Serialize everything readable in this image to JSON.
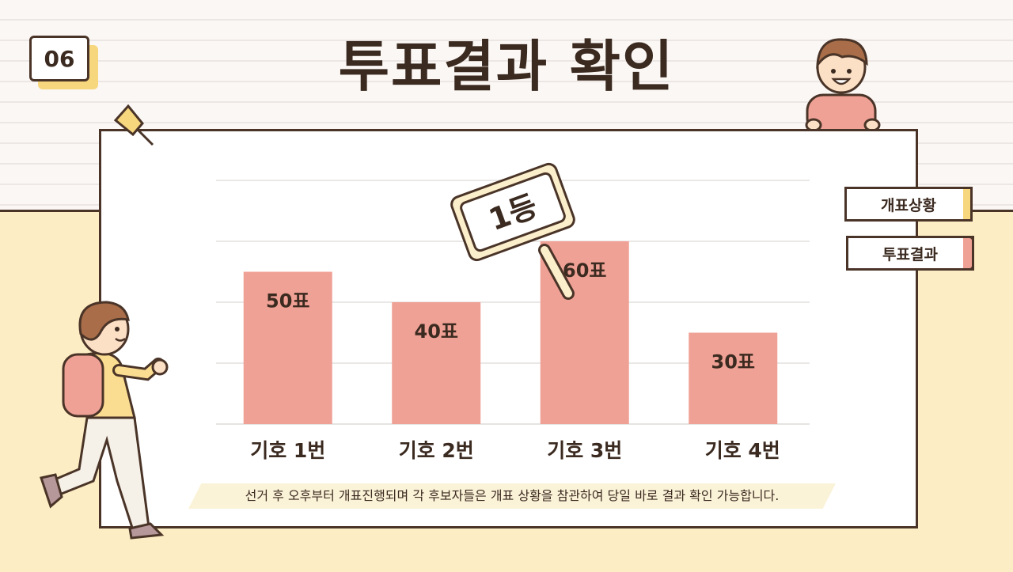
{
  "badge": {
    "number": "06"
  },
  "page": {
    "title": "투표결과 확인"
  },
  "side_tabs": [
    {
      "label": "개표상황"
    },
    {
      "label": "투표결과"
    }
  ],
  "sign": {
    "label": "1등"
  },
  "caption": "선거 후 오후부터 개표진행되며 각 후보자들은 개표 상황을 참관하여 당일 바로 결과 확인 가능합니다.",
  "colors": {
    "bar": "#f0a195",
    "outline": "#4a3428",
    "accent_yellow": "#f7d77e",
    "floor": "#fdedc4"
  },
  "chart_data": {
    "type": "bar",
    "categories": [
      "기호 1번",
      "기호 2번",
      "기호 3번",
      "기호 4번"
    ],
    "values": [
      50,
      40,
      60,
      30
    ],
    "data_labels": [
      "50표",
      "40표",
      "60표",
      "30표"
    ],
    "ylim": [
      0,
      80
    ],
    "grid": true,
    "title": "",
    "xlabel": "",
    "ylabel": ""
  }
}
